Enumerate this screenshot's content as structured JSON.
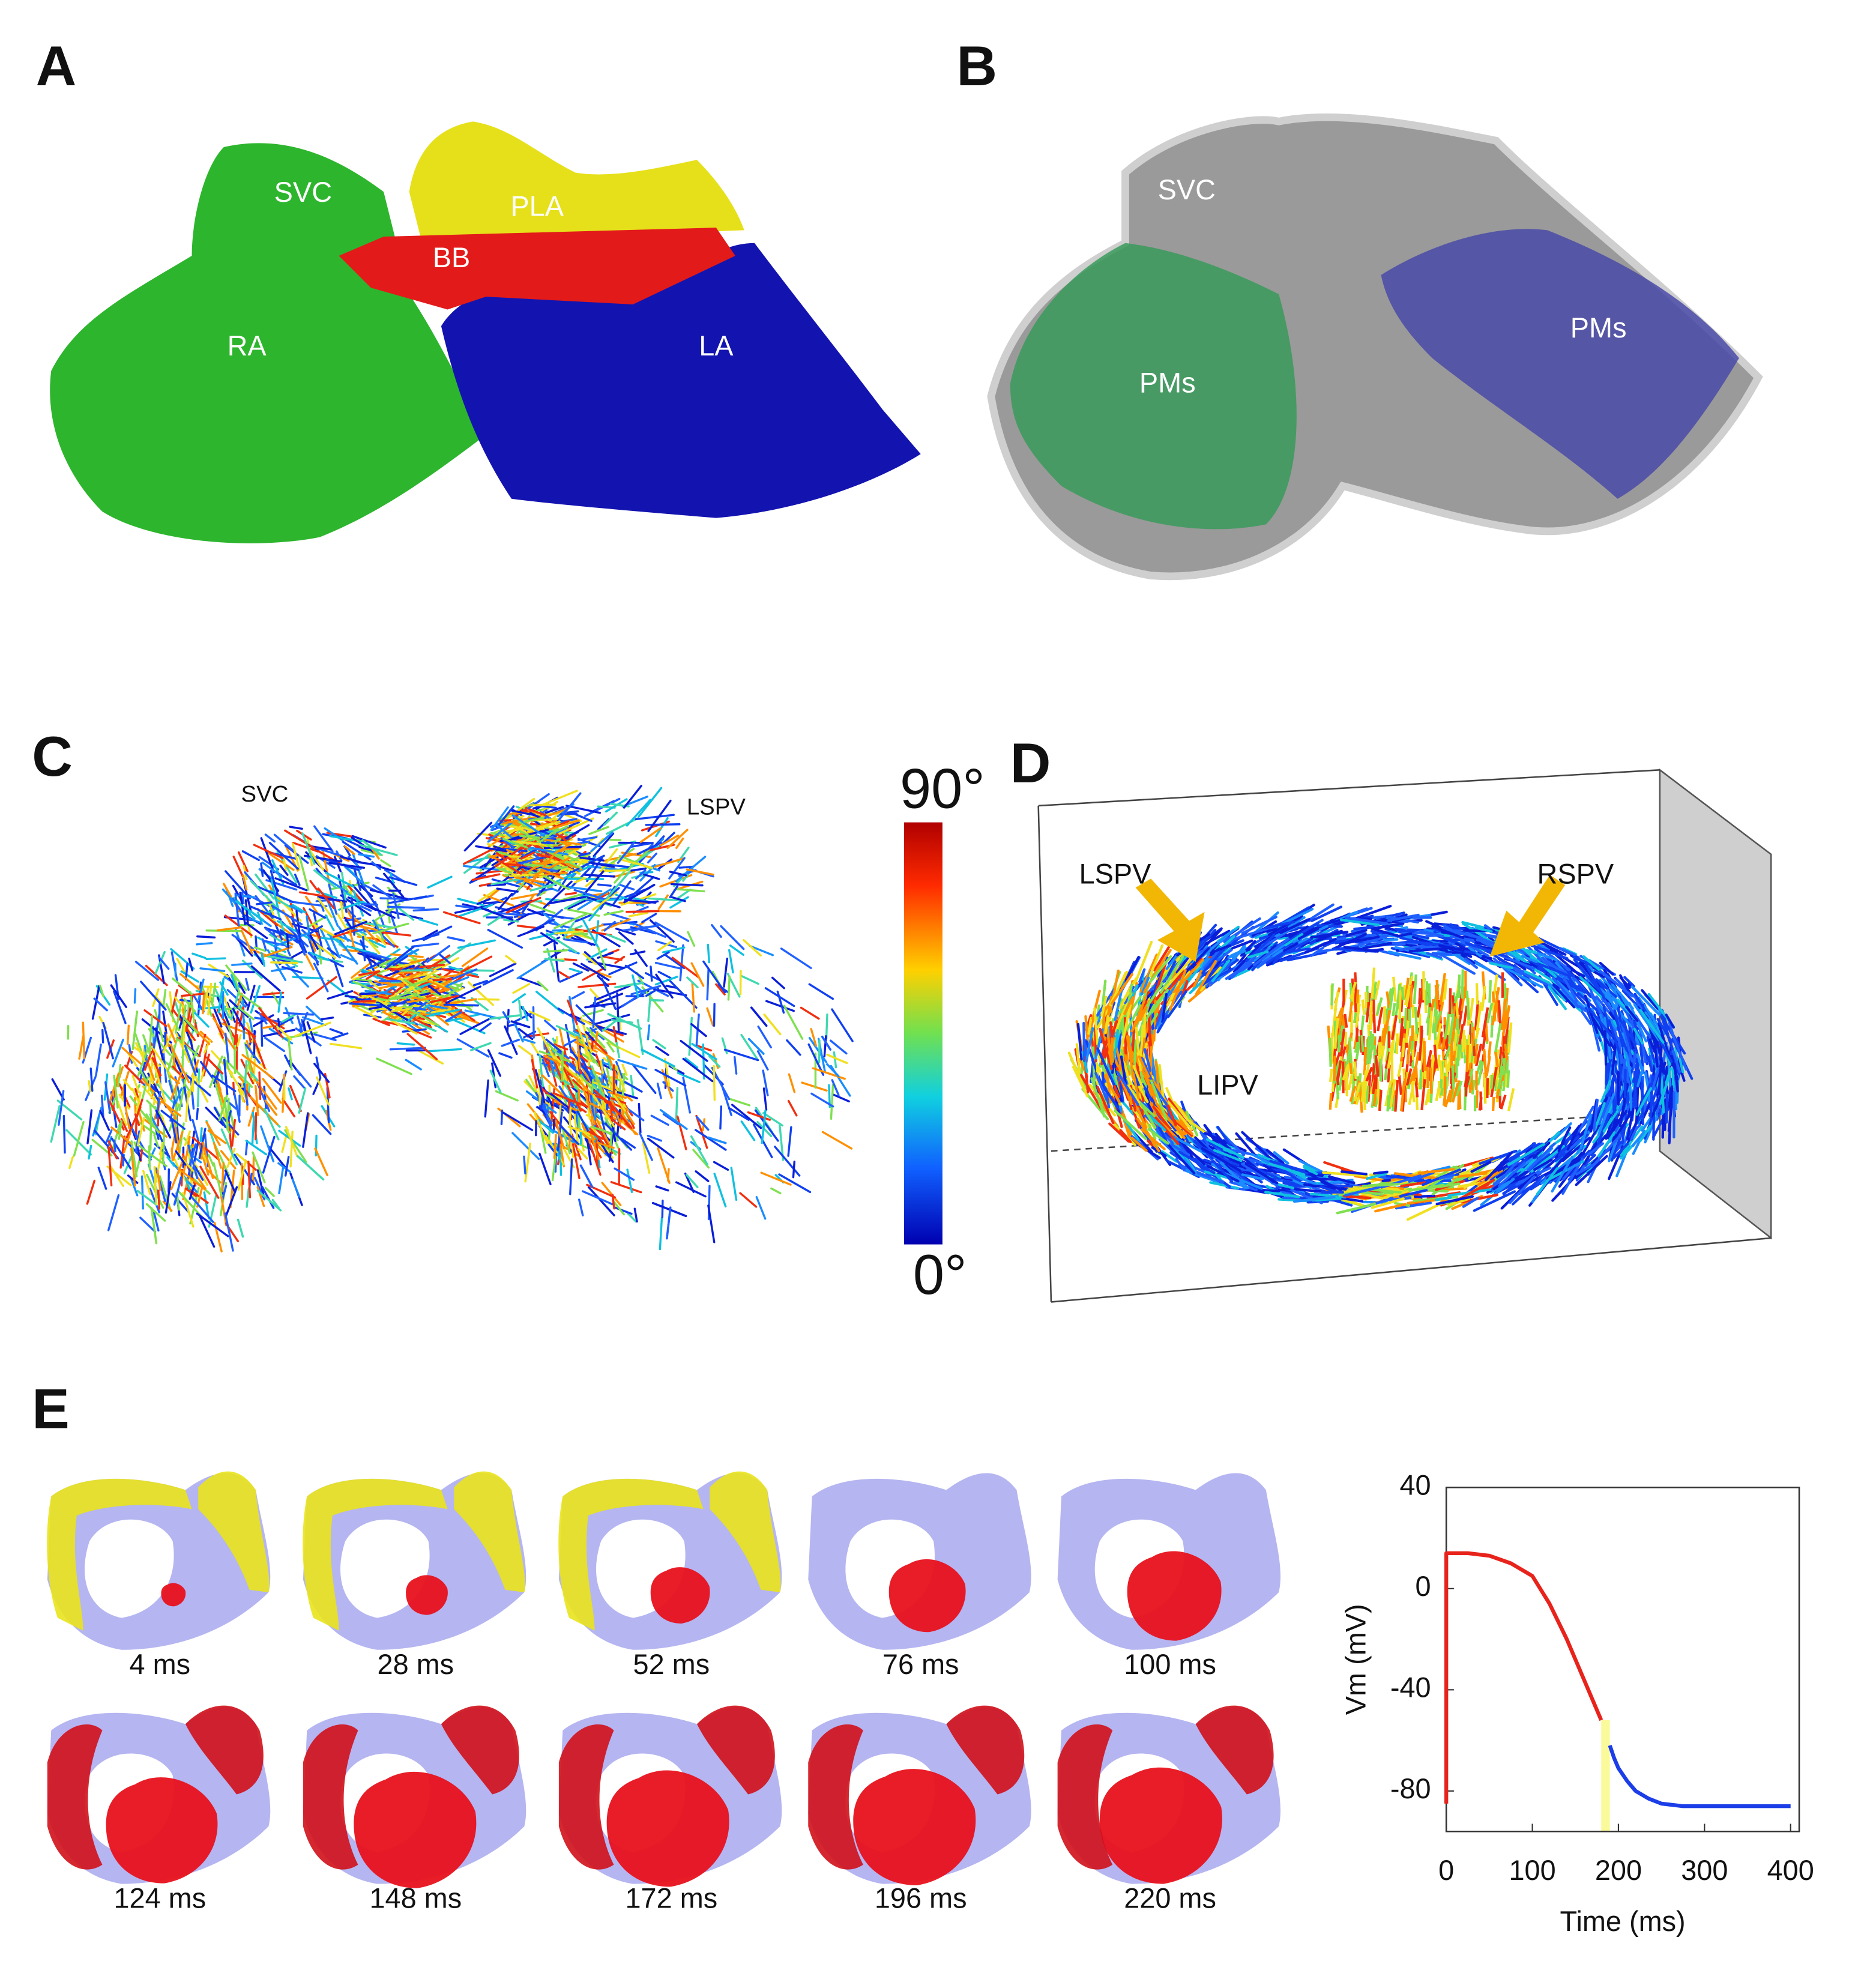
{
  "figure": {
    "panels": [
      {
        "label": "A",
        "annotations": [
          "SVC",
          "PLA",
          "BB",
          "RA",
          "LA"
        ]
      },
      {
        "label": "B",
        "annotations": [
          "SVC",
          "PMs",
          "PMs"
        ]
      },
      {
        "label": "C",
        "annotations": [
          "SVC",
          "LSPV"
        ],
        "colorbar": {
          "max_label": "90°",
          "min_label": "0°"
        }
      },
      {
        "label": "D",
        "annotations": [
          "LSPV",
          "RSPV",
          "LIPV"
        ]
      },
      {
        "label": "E",
        "frames": [
          "4 ms",
          "28 ms",
          "52 ms",
          "76 ms",
          "100 ms",
          "124 ms",
          "148 ms",
          "172 ms",
          "196 ms",
          "220 ms"
        ]
      }
    ]
  },
  "chart_data": {
    "type": "line",
    "xlabel": "Time (ms)",
    "ylabel": "Vm (mV)",
    "xlim": [
      0,
      410
    ],
    "ylim": [
      -96,
      40
    ],
    "xticks": [
      0,
      100,
      200,
      300,
      400
    ],
    "yticks": [
      -80,
      -40,
      0,
      40
    ],
    "series": [
      {
        "color": "#e8231c",
        "x": [
          0,
          0,
          25,
          50,
          75,
          100,
          120,
          140,
          160,
          180
        ],
        "values": [
          -85,
          14,
          14,
          13,
          10,
          5,
          -6,
          -20,
          -36,
          -52
        ]
      },
      {
        "color": "#1c3ee8",
        "x": [
          190,
          195,
          200,
          210,
          220,
          235,
          250,
          275,
          300,
          350,
          400
        ],
        "values": [
          -62,
          -67,
          -71,
          -76,
          -80,
          -83,
          -85,
          -86,
          -86,
          -86,
          -86
        ]
      }
    ],
    "shaded_region": {
      "x": [
        180,
        190
      ],
      "color": "#fafa9a"
    }
  }
}
